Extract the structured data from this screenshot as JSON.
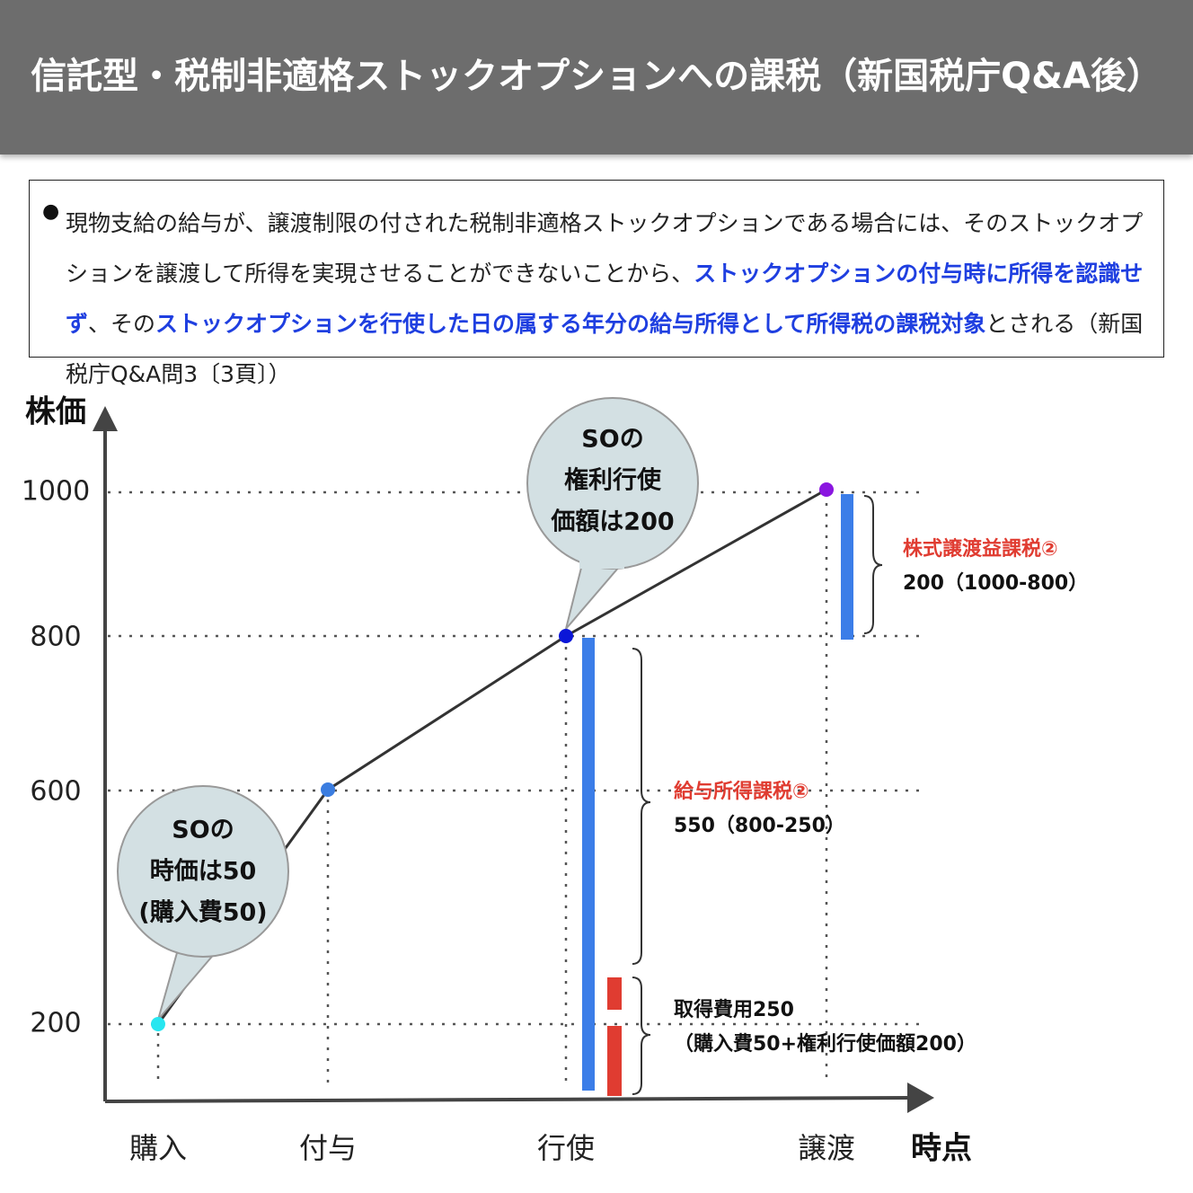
{
  "header": {
    "title": "信託型・税制非適格ストックオプションへの課税（新国税庁Q&A後）"
  },
  "note": {
    "segments": [
      {
        "text": "現物支給の給与が、譲渡制限の付された税制非適格ストックオプションである場合には、そのストックオプションを譲渡して所得を実現させることができないことから、",
        "emphasis": false
      },
      {
        "text": "ストックオプションの付与時に所得を認識せず",
        "emphasis": true
      },
      {
        "text": "、その",
        "emphasis": false
      },
      {
        "text": "ストックオプションを行使した日の属する年分の給与所得として所得税の課税対象",
        "emphasis": true
      },
      {
        "text": "とされる（新国税庁Q&A問3〔3頁〕）",
        "emphasis": false
      }
    ]
  },
  "diagram": {
    "y_axis_label": "株価",
    "x_axis_label": "時点",
    "y_labels": [
      "1000",
      "800",
      "600",
      "200"
    ],
    "x_labels": [
      "購入",
      "付与",
      "行使",
      "譲渡"
    ],
    "callouts": [
      {
        "lines": [
          "SOの",
          "時価は50",
          "(購入費50)"
        ]
      },
      {
        "lines": [
          "SOの",
          "権利行使",
          "価額は200"
        ]
      }
    ],
    "annotations": [
      {
        "title": "株式譲渡益課税②",
        "detail": "200（1000-800）",
        "highlight": true
      },
      {
        "title": "給与所得課税②",
        "detail": "550（800-250）",
        "highlight": true
      },
      {
        "title": "取得費用250",
        "detail": "（購入費50+権利行使価額200）",
        "highlight": false
      }
    ]
  }
}
